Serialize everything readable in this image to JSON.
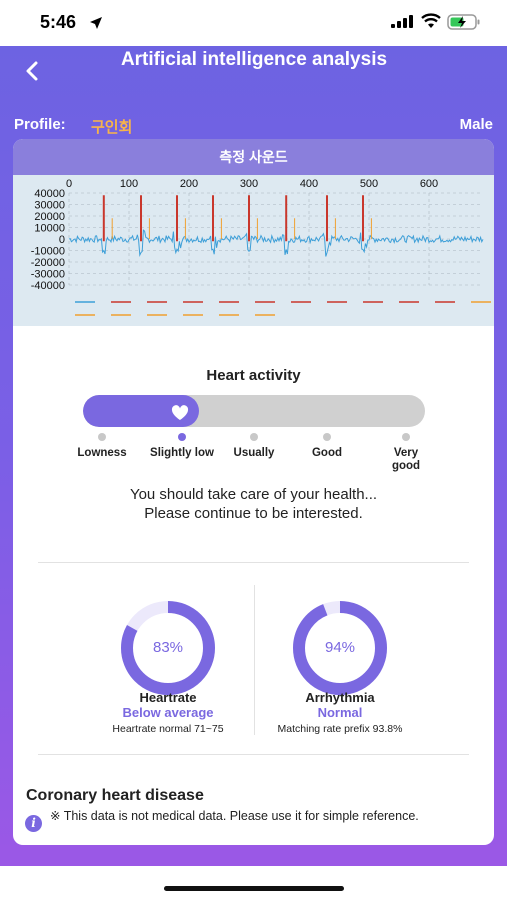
{
  "status_bar": {
    "time": "5:46",
    "location_icon": "location-arrow-icon",
    "signal_icon": "cellular-signal-icon",
    "wifi_icon": "wifi-icon",
    "battery_icon": "battery-charging-icon"
  },
  "header": {
    "back_icon": "chevron-left-icon",
    "title": "Artificial intelligence analysis"
  },
  "profile": {
    "label": "Profile:",
    "name": "구인회",
    "gender": "Male"
  },
  "card": {
    "header_title": "측정 사운드"
  },
  "chart_data": {
    "type": "line",
    "x_ticks": [
      "0",
      "100",
      "200",
      "300",
      "400",
      "500",
      "600"
    ],
    "y_ticks": [
      "40000",
      "30000",
      "20000",
      "10000",
      "0",
      "-10000",
      "-20000",
      "-30000",
      "-40000"
    ],
    "xlim": [
      0,
      690
    ],
    "ylim": [
      -40000,
      40000
    ],
    "grid": true,
    "colors": {
      "signal": "#3d9fd8",
      "peaks": "#c9372c",
      "secondary": "#f0a030"
    },
    "peak_x": [
      58,
      120,
      180,
      240,
      300,
      362,
      430,
      490
    ]
  },
  "heart_activity": {
    "title": "Heart activity",
    "heart_icon": "heart-icon",
    "level_fraction": 0.34,
    "levels": [
      "Lowness",
      "Slightly low",
      "Usually",
      "Good",
      "Very good"
    ],
    "active_index": 1,
    "advice_line1": "You should take care of your health...",
    "advice_line2": "Please continue to be interested."
  },
  "metrics": {
    "heartrate": {
      "percent_text": "83%",
      "value": 0.83,
      "name": "Heartrate",
      "status": "Below average",
      "note": "Heartrate normal 71~75"
    },
    "arrhythmia": {
      "percent_text": "94%",
      "value": 0.94,
      "name": "Arrhythmia",
      "status": "Normal",
      "note": "Matching rate prefix  93.8%"
    }
  },
  "coronary": {
    "title": "Coronary heart disease",
    "info_icon": "info-icon",
    "disclaimer": "※ This data is not medical data. Please use it for simple reference."
  },
  "colors": {
    "accent": "#7a68e0",
    "profile_name": "#f7b44a"
  }
}
